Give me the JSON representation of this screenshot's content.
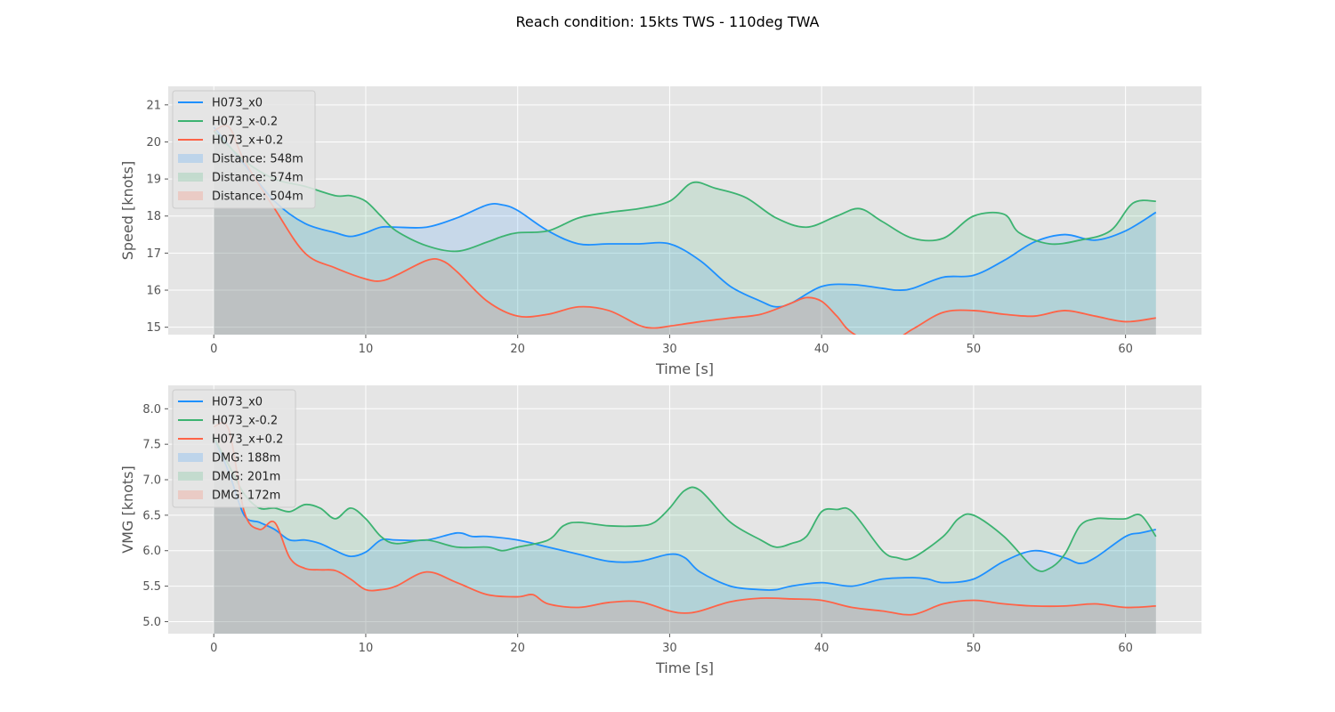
{
  "suptitle": "Reach condition: 15kts TWS  -  110deg TWA",
  "colors": {
    "background": "#e5e5e5",
    "grid": "#ffffff",
    "tick_text": "#555555",
    "H073_x0": "#1e90ff",
    "H073_x-0.2": "#3cb371",
    "H073_x+0.2": "#ff6347"
  },
  "chart_data": [
    {
      "type": "area",
      "xlabel": "Time [s]",
      "ylabel": "Speed [knots]",
      "xlim": [
        -3,
        65
      ],
      "ylim": [
        14.8,
        21.5
      ],
      "xticks": [
        0,
        10,
        20,
        30,
        40,
        50,
        60
      ],
      "yticks": [
        15,
        16,
        17,
        18,
        19,
        20,
        21
      ],
      "grid": true,
      "legend": "upper-left",
      "series": [
        {
          "name": "H073_x0",
          "color": "#1e90ff",
          "x": [
            0,
            2,
            4,
            6,
            8,
            9,
            10,
            11,
            12,
            14,
            16,
            18,
            19,
            20,
            22,
            24,
            26,
            28,
            30,
            32,
            34,
            36,
            37,
            38,
            40,
            42,
            44,
            45,
            46,
            48,
            50,
            52,
            54,
            56,
            58,
            60,
            62
          ],
          "y": [
            20.4,
            19.4,
            18.4,
            17.8,
            17.55,
            17.45,
            17.55,
            17.7,
            17.7,
            17.7,
            17.95,
            18.3,
            18.3,
            18.15,
            17.6,
            17.25,
            17.25,
            17.25,
            17.25,
            16.8,
            16.1,
            15.7,
            15.55,
            15.65,
            16.1,
            16.15,
            16.05,
            16.0,
            16.05,
            16.35,
            16.4,
            16.8,
            17.3,
            17.5,
            17.35,
            17.6,
            18.1
          ]
        },
        {
          "name": "H073_x-0.2",
          "color": "#3cb371",
          "x": [
            0,
            2,
            4,
            6,
            8,
            9,
            10,
            11,
            12,
            14,
            16,
            18,
            19,
            20,
            22,
            24,
            26,
            28,
            30,
            31.5,
            33,
            35,
            37,
            39,
            41,
            42.5,
            44,
            46,
            48,
            50,
            52,
            53,
            55,
            57,
            59,
            60.5,
            62
          ],
          "y": [
            20.3,
            19.5,
            19.0,
            18.8,
            18.55,
            18.55,
            18.4,
            18.0,
            17.6,
            17.2,
            17.05,
            17.3,
            17.45,
            17.55,
            17.6,
            17.95,
            18.1,
            18.2,
            18.4,
            18.9,
            18.75,
            18.5,
            17.95,
            17.7,
            18.0,
            18.2,
            17.85,
            17.4,
            17.4,
            18.0,
            18.05,
            17.55,
            17.25,
            17.35,
            17.6,
            18.35,
            18.4
          ]
        },
        {
          "name": "H073_x+0.2",
          "color": "#ff6347",
          "x": [
            0,
            1,
            2,
            4,
            6,
            8,
            10,
            11,
            12,
            14,
            15,
            16,
            18,
            20,
            22,
            24,
            26,
            28,
            29,
            30,
            32,
            34,
            36,
            38,
            39,
            40,
            41,
            42,
            44,
            46,
            48,
            50,
            52,
            54,
            56,
            58,
            60,
            62
          ],
          "y": [
            20.3,
            20.4,
            19.5,
            18.2,
            17.0,
            16.6,
            16.3,
            16.25,
            16.4,
            16.8,
            16.8,
            16.5,
            15.7,
            15.3,
            15.35,
            15.55,
            15.45,
            15.05,
            14.98,
            15.03,
            15.15,
            15.25,
            15.35,
            15.65,
            15.8,
            15.7,
            15.3,
            14.85,
            14.5,
            14.95,
            15.4,
            15.45,
            15.35,
            15.3,
            15.45,
            15.3,
            15.15,
            15.25
          ]
        }
      ],
      "fill_legend": [
        {
          "label": "Distance: 548m",
          "color": "#1e90ff"
        },
        {
          "label": "Distance: 574m",
          "color": "#3cb371"
        },
        {
          "label": "Distance: 504m",
          "color": "#ff6347"
        }
      ]
    },
    {
      "type": "area",
      "xlabel": "Time [s]",
      "ylabel": "VMG [knots]",
      "xlim": [
        -3,
        65
      ],
      "ylim": [
        4.83,
        8.33
      ],
      "xticks": [
        0,
        10,
        20,
        30,
        40,
        50,
        60
      ],
      "yticks": [
        5.0,
        5.5,
        6.0,
        6.5,
        7.0,
        7.5,
        8.0
      ],
      "grid": true,
      "legend": "upper-left",
      "series": [
        {
          "name": "H073_x0",
          "color": "#1e90ff",
          "x": [
            0,
            1,
            2,
            3,
            4,
            5,
            6,
            7,
            8,
            9,
            10,
            11,
            12,
            14,
            16,
            17,
            18,
            20,
            22,
            24,
            26,
            28,
            30,
            31,
            32,
            34,
            36,
            37,
            38,
            40,
            42,
            44,
            46,
            47,
            48,
            50,
            52,
            54,
            56,
            57,
            58,
            60,
            61,
            62
          ],
          "y": [
            7.6,
            7.1,
            6.5,
            6.4,
            6.3,
            6.15,
            6.15,
            6.1,
            6.0,
            5.92,
            5.98,
            6.15,
            6.15,
            6.15,
            6.25,
            6.2,
            6.2,
            6.15,
            6.05,
            5.95,
            5.85,
            5.85,
            5.95,
            5.9,
            5.7,
            5.5,
            5.45,
            5.45,
            5.5,
            5.55,
            5.5,
            5.6,
            5.62,
            5.6,
            5.55,
            5.6,
            5.85,
            6.0,
            5.9,
            5.82,
            5.9,
            6.2,
            6.25,
            6.3
          ]
        },
        {
          "name": "H073_x-0.2",
          "color": "#3cb371",
          "x": [
            0,
            1,
            2,
            3,
            4,
            5,
            6,
            7,
            8,
            9,
            10,
            11,
            12,
            14,
            16,
            18,
            19,
            20,
            22,
            23,
            24,
            26,
            28,
            29,
            30,
            31,
            32,
            34,
            36,
            37,
            38,
            39,
            40,
            41,
            42,
            44,
            45,
            46,
            48,
            49,
            50,
            52,
            54,
            55,
            56,
            57,
            58,
            59,
            60,
            61,
            62
          ],
          "y": [
            7.6,
            7.2,
            6.8,
            6.6,
            6.6,
            6.55,
            6.65,
            6.6,
            6.45,
            6.6,
            6.45,
            6.2,
            6.1,
            6.15,
            6.05,
            6.05,
            6.0,
            6.05,
            6.15,
            6.35,
            6.4,
            6.35,
            6.35,
            6.4,
            6.6,
            6.85,
            6.85,
            6.4,
            6.15,
            6.05,
            6.1,
            6.2,
            6.55,
            6.58,
            6.55,
            6.0,
            5.9,
            5.9,
            6.2,
            6.45,
            6.5,
            6.2,
            5.75,
            5.75,
            5.95,
            6.35,
            6.45,
            6.45,
            6.45,
            6.5,
            6.2
          ]
        },
        {
          "name": "H073_x+0.2",
          "color": "#ff6347",
          "x": [
            0,
            1,
            2,
            3,
            4,
            5,
            6,
            7,
            8,
            9,
            10,
            11,
            12,
            14,
            16,
            18,
            20,
            21,
            22,
            24,
            26,
            28,
            30,
            31,
            32,
            34,
            36,
            38,
            40,
            42,
            44,
            46,
            48,
            50,
            52,
            54,
            56,
            58,
            60,
            62
          ],
          "y": [
            7.75,
            7.7,
            6.55,
            6.3,
            6.4,
            5.9,
            5.75,
            5.73,
            5.72,
            5.6,
            5.45,
            5.45,
            5.5,
            5.7,
            5.55,
            5.38,
            5.35,
            5.38,
            5.25,
            5.2,
            5.27,
            5.28,
            5.15,
            5.12,
            5.15,
            5.28,
            5.33,
            5.32,
            5.3,
            5.2,
            5.15,
            5.1,
            5.25,
            5.3,
            5.25,
            5.22,
            5.22,
            5.25,
            5.2,
            5.22
          ]
        }
      ],
      "fill_legend": [
        {
          "label": "DMG: 188m",
          "color": "#1e90ff"
        },
        {
          "label": "DMG: 201m",
          "color": "#3cb371"
        },
        {
          "label": "DMG: 172m",
          "color": "#ff6347"
        }
      ]
    }
  ]
}
